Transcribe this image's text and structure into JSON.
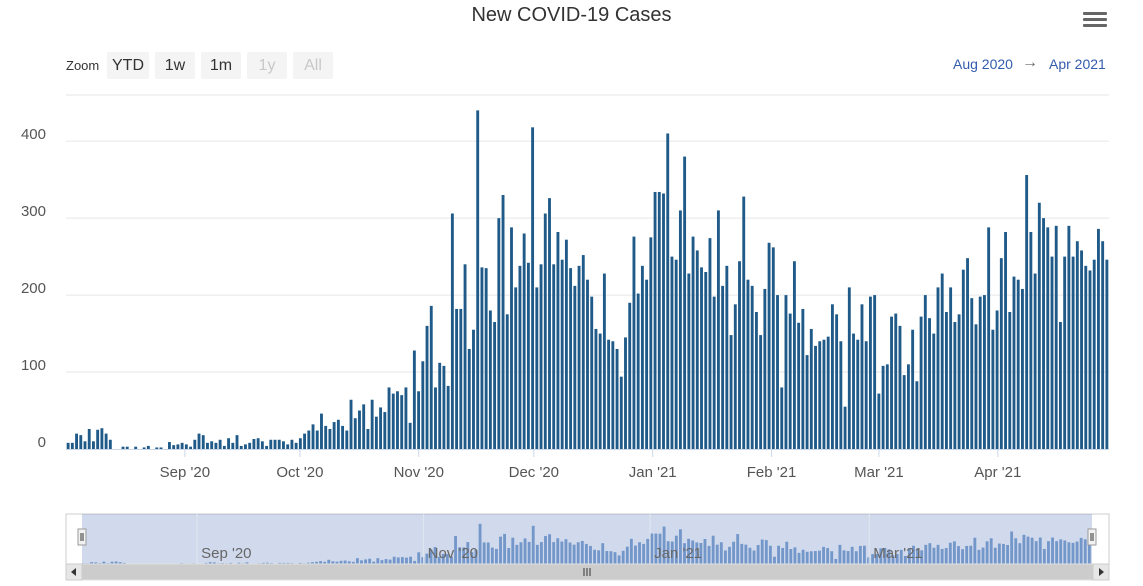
{
  "title": "New COVID-19 Cases",
  "menu_icon": "hamburger-menu-icon",
  "zoom": {
    "label": "Zoom",
    "buttons": [
      {
        "label": "YTD",
        "enabled": true
      },
      {
        "label": "1w",
        "enabled": true
      },
      {
        "label": "1m",
        "enabled": true
      },
      {
        "label": "1y",
        "enabled": false
      },
      {
        "label": "All",
        "enabled": false
      }
    ]
  },
  "range": {
    "from": "Aug 2020",
    "arrow": "→",
    "to": "Apr 2021"
  },
  "colors": {
    "bar": "#1f5a88",
    "navigator_bar": "#7a9fcd",
    "grid": "#e6e6e6",
    "range_text": "#335cad",
    "mask": "rgba(102,133,194,0.3)"
  },
  "chart_data": {
    "type": "bar",
    "title": "New COVID-19 Cases",
    "xlabel": "",
    "ylabel": "",
    "ylim": [
      0,
      460
    ],
    "yticks": [
      0,
      100,
      200,
      300,
      400
    ],
    "grid": true,
    "x_start": "2020-08-01",
    "x_end": "2021-04-30",
    "xtick_labels": [
      {
        "label": "Sep '20",
        "date": "2020-09-01"
      },
      {
        "label": "Oct '20",
        "date": "2020-10-01"
      },
      {
        "label": "Nov '20",
        "date": "2020-11-01"
      },
      {
        "label": "Dec '20",
        "date": "2020-12-01"
      },
      {
        "label": "Jan '21",
        "date": "2021-01-01"
      },
      {
        "label": "Feb '21",
        "date": "2021-02-01"
      },
      {
        "label": "Mar '21",
        "date": "2021-03-01"
      },
      {
        "label": "Apr '21",
        "date": "2021-04-01"
      }
    ],
    "navigator_labels": [
      {
        "label": "Sep '20",
        "date": "2020-09-01"
      },
      {
        "label": "Nov '20",
        "date": "2020-11-01"
      },
      {
        "label": "Jan '21",
        "date": "2021-01-01"
      },
      {
        "label": "Mar '21",
        "date": "2021-03-01"
      }
    ],
    "series": [
      {
        "name": "New COVID-19 Cases",
        "values": [
          8,
          8,
          20,
          18,
          10,
          26,
          10,
          25,
          27,
          20,
          12,
          0,
          0,
          3,
          3,
          0,
          3,
          0,
          2,
          4,
          0,
          2,
          2,
          0,
          9,
          5,
          6,
          8,
          6,
          3,
          12,
          20,
          18,
          8,
          10,
          8,
          12,
          4,
          14,
          8,
          18,
          4,
          6,
          8,
          13,
          14,
          10,
          4,
          12,
          12,
          12,
          10,
          6,
          12,
          8,
          14,
          20,
          24,
          32,
          24,
          46,
          30,
          26,
          35,
          38,
          30,
          24,
          64,
          40,
          50,
          58,
          26,
          64,
          42,
          54,
          48,
          80,
          72,
          75,
          70,
          80,
          34,
          128,
          75,
          114,
          160,
          186,
          80,
          112,
          108,
          82,
          306,
          182,
          182,
          240,
          130,
          155,
          440,
          236,
          235,
          180,
          165,
          300,
          330,
          175,
          288,
          210,
          238,
          280,
          242,
          418,
          210,
          240,
          306,
          326,
          240,
          282,
          246,
          272,
          235,
          212,
          238,
          252,
          220,
          198,
          156,
          150,
          228,
          142,
          140,
          130,
          94,
          145,
          190,
          276,
          202,
          238,
          220,
          275,
          334,
          334,
          332,
          410,
          250,
          246,
          310,
          380,
          228,
          276,
          258,
          236,
          230,
          274,
          198,
          310,
          212,
          238,
          148,
          188,
          244,
          328,
          220,
          212,
          178,
          148,
          208,
          268,
          262,
          200,
          80,
          200,
          176,
          244,
          164,
          182,
          122,
          156,
          134,
          140,
          142,
          146,
          188,
          175,
          140,
          55,
          210,
          150,
          142,
          188,
          140,
          198,
          200,
          72,
          108,
          110,
          172,
          176,
          160,
          96,
          110,
          155,
          88,
          172,
          200,
          170,
          150,
          210,
          228,
          178,
          210,
          165,
          175,
          233,
          248,
          196,
          162,
          198,
          200,
          288,
          155,
          180,
          248,
          282,
          178,
          224,
          220,
          208,
          356,
          282,
          228,
          320,
          300,
          288,
          250,
          290,
          165,
          250,
          290,
          250,
          270,
          258,
          238,
          232,
          246,
          286,
          270,
          246
        ],
        "color": "#1f5a88"
      }
    ]
  }
}
